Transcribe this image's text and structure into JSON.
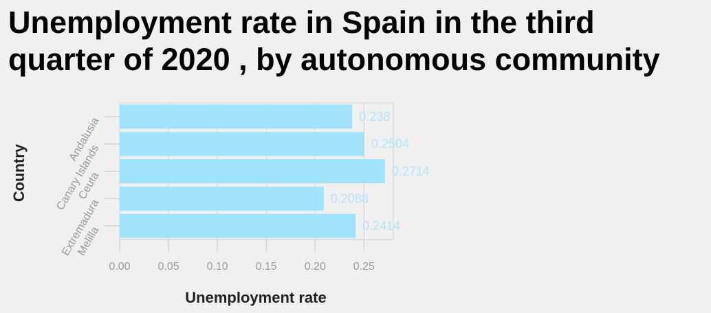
{
  "chart_data": {
    "type": "bar",
    "orientation": "horizontal",
    "title_lines": [
      "Unemployment rate in Spain in the third",
      "quarter of 2020 , by autonomous community"
    ],
    "xlabel": "Unemployment rate",
    "ylabel": "Country",
    "categories": [
      "Andalusia",
      "Canary Islands",
      "Ceuta",
      "Extremadura",
      "Melilla"
    ],
    "values": [
      0.238,
      0.2504,
      0.2714,
      0.2088,
      0.2414
    ],
    "value_labels": [
      "0.238",
      "0.2504",
      "0.2714",
      "0.2088",
      "0.2414"
    ],
    "xticks": [
      0,
      0.05,
      0.1,
      0.15,
      0.2,
      0.25
    ],
    "xtick_labels": [
      "0.00",
      "0.05",
      "0.10",
      "0.15",
      "0.20",
      "0.25"
    ],
    "xlim": [
      0,
      0.28
    ],
    "grid": true,
    "legend": false,
    "colors": {
      "bar": "#a1e3fb",
      "data_label": "#b2e6f8",
      "grid": "#d6d6d6",
      "axis": "#c8c8c8"
    }
  }
}
